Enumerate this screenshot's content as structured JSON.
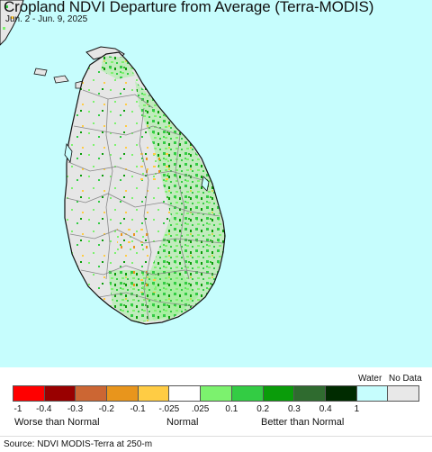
{
  "header": {
    "title": "Cropland NDVI Departure from Average (Terra-MODIS)",
    "subtitle": "Jun. 2 - Jun. 9, 2025"
  },
  "legend": {
    "water_label": "Water",
    "nodata_label": "No Data",
    "swatches": [
      {
        "color": "#ff0000"
      },
      {
        "color": "#990000"
      },
      {
        "color": "#cc6633"
      },
      {
        "color": "#e8951c"
      },
      {
        "color": "#ffcc44"
      },
      {
        "color": "#ffffff"
      },
      {
        "color": "#7cf26e"
      },
      {
        "color": "#33cc44"
      },
      {
        "color": "#0a9c0a"
      },
      {
        "color": "#2f6b2f"
      },
      {
        "color": "#002b00"
      },
      {
        "color": "#c6fdfd"
      },
      {
        "color": "#e8e8e8"
      }
    ],
    "ticks": [
      "-1",
      "-0.4",
      "-0.3",
      "-0.2",
      "-0.1",
      "-.025",
      ".025",
      "0.1",
      "0.2",
      "0.3",
      "0.4",
      "1"
    ],
    "categories": {
      "worse": "Worse than Normal",
      "normal": "Normal",
      "better": "Better than Normal"
    }
  },
  "footer": {
    "source": "Source: NDVI MODIS-Terra at 250-m"
  },
  "map": {
    "water_color": "#c6fdfd",
    "land_color": "#e6e6e6",
    "outline_color": "#111111",
    "district_color": "#888888"
  }
}
